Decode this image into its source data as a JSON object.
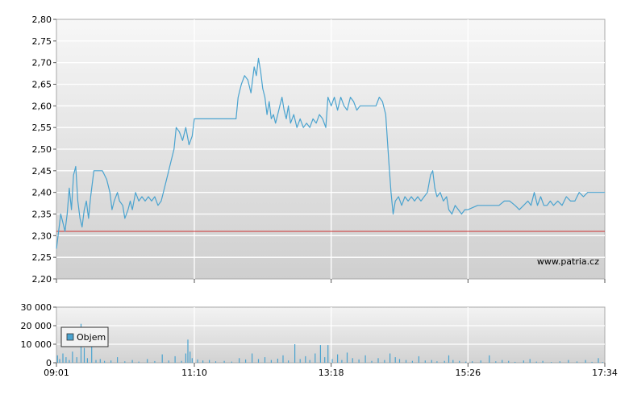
{
  "chart_data": [
    {
      "type": "line",
      "x_unit": "time",
      "ylim": [
        2.2,
        2.8
      ],
      "y_ticks": [
        "2,20",
        "2,25",
        "2,30",
        "2,35",
        "2,40",
        "2,45",
        "2,50",
        "2,55",
        "2,60",
        "2,65",
        "2,70",
        "2,75",
        "2,80"
      ],
      "grid": true,
      "reference_line": {
        "value": 2.31,
        "color": "#cc3333"
      },
      "watermark": "www.patria.cz",
      "series": [
        {
          "color": "#4aa3cf",
          "points": [
            [
              "09:01",
              2.27
            ],
            [
              "09:03",
              2.31
            ],
            [
              "09:05",
              2.35
            ],
            [
              "09:07",
              2.33
            ],
            [
              "09:09",
              2.31
            ],
            [
              "09:11",
              2.35
            ],
            [
              "09:13",
              2.41
            ],
            [
              "09:15",
              2.36
            ],
            [
              "09:17",
              2.44
            ],
            [
              "09:19",
              2.46
            ],
            [
              "09:21",
              2.38
            ],
            [
              "09:23",
              2.34
            ],
            [
              "09:25",
              2.32
            ],
            [
              "09:27",
              2.36
            ],
            [
              "09:29",
              2.38
            ],
            [
              "09:31",
              2.34
            ],
            [
              "09:33",
              2.39
            ],
            [
              "09:36",
              2.45
            ],
            [
              "09:40",
              2.45
            ],
            [
              "09:44",
              2.45
            ],
            [
              "09:48",
              2.43
            ],
            [
              "09:51",
              2.4
            ],
            [
              "09:53",
              2.36
            ],
            [
              "09:55",
              2.38
            ],
            [
              "09:58",
              2.4
            ],
            [
              "10:00",
              2.38
            ],
            [
              "10:03",
              2.37
            ],
            [
              "10:05",
              2.34
            ],
            [
              "10:08",
              2.36
            ],
            [
              "10:10",
              2.38
            ],
            [
              "10:12",
              2.36
            ],
            [
              "10:15",
              2.4
            ],
            [
              "10:18",
              2.38
            ],
            [
              "10:21",
              2.39
            ],
            [
              "10:24",
              2.38
            ],
            [
              "10:27",
              2.39
            ],
            [
              "10:30",
              2.38
            ],
            [
              "10:33",
              2.39
            ],
            [
              "10:36",
              2.37
            ],
            [
              "10:39",
              2.38
            ],
            [
              "10:42",
              2.41
            ],
            [
              "10:45",
              2.44
            ],
            [
              "10:48",
              2.47
            ],
            [
              "10:51",
              2.5
            ],
            [
              "10:53",
              2.55
            ],
            [
              "10:56",
              2.54
            ],
            [
              "10:59",
              2.52
            ],
            [
              "11:02",
              2.55
            ],
            [
              "11:05",
              2.51
            ],
            [
              "11:08",
              2.53
            ],
            [
              "11:10",
              2.57
            ],
            [
              "11:20",
              2.57
            ],
            [
              "11:30",
              2.57
            ],
            [
              "11:40",
              2.57
            ],
            [
              "11:49",
              2.57
            ],
            [
              "11:51",
              2.62
            ],
            [
              "11:54",
              2.65
            ],
            [
              "11:57",
              2.67
            ],
            [
              "12:00",
              2.66
            ],
            [
              "12:03",
              2.63
            ],
            [
              "12:06",
              2.69
            ],
            [
              "12:08",
              2.67
            ],
            [
              "12:10",
              2.71
            ],
            [
              "12:12",
              2.68
            ],
            [
              "12:14",
              2.64
            ],
            [
              "12:16",
              2.62
            ],
            [
              "12:18",
              2.58
            ],
            [
              "12:20",
              2.61
            ],
            [
              "12:22",
              2.57
            ],
            [
              "12:24",
              2.58
            ],
            [
              "12:26",
              2.56
            ],
            [
              "12:28",
              2.58
            ],
            [
              "12:30",
              2.6
            ],
            [
              "12:32",
              2.62
            ],
            [
              "12:34",
              2.59
            ],
            [
              "12:36",
              2.57
            ],
            [
              "12:38",
              2.6
            ],
            [
              "12:40",
              2.56
            ],
            [
              "12:43",
              2.58
            ],
            [
              "12:46",
              2.55
            ],
            [
              "12:49",
              2.57
            ],
            [
              "12:52",
              2.55
            ],
            [
              "12:55",
              2.56
            ],
            [
              "12:58",
              2.55
            ],
            [
              "13:01",
              2.57
            ],
            [
              "13:04",
              2.56
            ],
            [
              "13:07",
              2.58
            ],
            [
              "13:10",
              2.57
            ],
            [
              "13:13",
              2.55
            ],
            [
              "13:15",
              2.62
            ],
            [
              "13:18",
              2.6
            ],
            [
              "13:21",
              2.62
            ],
            [
              "13:24",
              2.59
            ],
            [
              "13:27",
              2.62
            ],
            [
              "13:30",
              2.6
            ],
            [
              "13:33",
              2.59
            ],
            [
              "13:36",
              2.62
            ],
            [
              "13:39",
              2.61
            ],
            [
              "13:42",
              2.59
            ],
            [
              "13:45",
              2.6
            ],
            [
              "13:50",
              2.6
            ],
            [
              "13:55",
              2.6
            ],
            [
              "14:00",
              2.6
            ],
            [
              "14:03",
              2.62
            ],
            [
              "14:06",
              2.61
            ],
            [
              "14:09",
              2.58
            ],
            [
              "14:12",
              2.47
            ],
            [
              "14:14",
              2.4
            ],
            [
              "14:16",
              2.35
            ],
            [
              "14:18",
              2.38
            ],
            [
              "14:21",
              2.39
            ],
            [
              "14:24",
              2.37
            ],
            [
              "14:27",
              2.39
            ],
            [
              "14:30",
              2.38
            ],
            [
              "14:33",
              2.39
            ],
            [
              "14:36",
              2.38
            ],
            [
              "14:39",
              2.39
            ],
            [
              "14:42",
              2.38
            ],
            [
              "14:45",
              2.39
            ],
            [
              "14:48",
              2.4
            ],
            [
              "14:51",
              2.44
            ],
            [
              "14:53",
              2.45
            ],
            [
              "14:55",
              2.41
            ],
            [
              "14:57",
              2.39
            ],
            [
              "15:00",
              2.4
            ],
            [
              "15:03",
              2.38
            ],
            [
              "15:06",
              2.39
            ],
            [
              "15:08",
              2.36
            ],
            [
              "15:11",
              2.35
            ],
            [
              "15:14",
              2.37
            ],
            [
              "15:17",
              2.36
            ],
            [
              "15:20",
              2.35
            ],
            [
              "15:23",
              2.36
            ],
            [
              "15:26",
              2.36
            ],
            [
              "15:35",
              2.37
            ],
            [
              "15:45",
              2.37
            ],
            [
              "15:55",
              2.37
            ],
            [
              "16:00",
              2.38
            ],
            [
              "16:05",
              2.38
            ],
            [
              "16:10",
              2.37
            ],
            [
              "16:14",
              2.36
            ],
            [
              "16:18",
              2.37
            ],
            [
              "16:22",
              2.38
            ],
            [
              "16:25",
              2.37
            ],
            [
              "16:28",
              2.4
            ],
            [
              "16:31",
              2.37
            ],
            [
              "16:34",
              2.39
            ],
            [
              "16:37",
              2.37
            ],
            [
              "16:40",
              2.37
            ],
            [
              "16:43",
              2.38
            ],
            [
              "16:46",
              2.37
            ],
            [
              "16:50",
              2.38
            ],
            [
              "16:54",
              2.37
            ],
            [
              "16:58",
              2.39
            ],
            [
              "17:02",
              2.38
            ],
            [
              "17:06",
              2.38
            ],
            [
              "17:10",
              2.4
            ],
            [
              "17:14",
              2.39
            ],
            [
              "17:18",
              2.4
            ],
            [
              "17:22",
              2.4
            ],
            [
              "17:26",
              2.4
            ],
            [
              "17:30",
              2.4
            ],
            [
              "17:34",
              2.4
            ]
          ]
        }
      ]
    },
    {
      "type": "bar",
      "x_unit": "time",
      "ylim": [
        0,
        30000
      ],
      "y_ticks": [
        "0",
        "10 000",
        "20 000",
        "30 000"
      ],
      "x_ticks": [
        "09:01",
        "11:10",
        "13:18",
        "15:26",
        "17:34"
      ],
      "grid": true,
      "legend": {
        "position": "top-left",
        "entries": [
          "Objem"
        ]
      },
      "series": [
        {
          "name": "Objem",
          "color": "#4aa3cf",
          "points": [
            [
              "09:02",
              4000
            ],
            [
              "09:04",
              2000
            ],
            [
              "09:07",
              5000
            ],
            [
              "09:10",
              3000
            ],
            [
              "09:13",
              1500
            ],
            [
              "09:16",
              6000
            ],
            [
              "09:20",
              3000
            ],
            [
              "09:24",
              21000
            ],
            [
              "09:27",
              8000
            ],
            [
              "09:30",
              2500
            ],
            [
              "09:34",
              9000
            ],
            [
              "09:38",
              1500
            ],
            [
              "09:42",
              2000
            ],
            [
              "09:46",
              1000
            ],
            [
              "09:52",
              1200
            ],
            [
              "09:58",
              3000
            ],
            [
              "10:05",
              800
            ],
            [
              "10:12",
              1500
            ],
            [
              "10:18",
              600
            ],
            [
              "10:26",
              2000
            ],
            [
              "10:33",
              900
            ],
            [
              "10:40",
              4500
            ],
            [
              "10:46",
              1200
            ],
            [
              "10:52",
              3500
            ],
            [
              "10:58",
              1000
            ],
            [
              "11:02",
              5000
            ],
            [
              "11:04",
              12500
            ],
            [
              "11:06",
              6000
            ],
            [
              "11:08",
              2500
            ],
            [
              "11:13",
              1800
            ],
            [
              "11:18",
              1200
            ],
            [
              "11:24",
              1500
            ],
            [
              "11:30",
              800
            ],
            [
              "11:38",
              1000
            ],
            [
              "11:45",
              600
            ],
            [
              "11:52",
              2500
            ],
            [
              "11:58",
              1800
            ],
            [
              "12:04",
              5000
            ],
            [
              "12:10",
              2000
            ],
            [
              "12:16",
              3000
            ],
            [
              "12:22",
              1500
            ],
            [
              "12:28",
              2200
            ],
            [
              "12:33",
              4000
            ],
            [
              "12:38",
              1200
            ],
            [
              "12:44",
              10000
            ],
            [
              "12:49",
              2000
            ],
            [
              "12:54",
              3500
            ],
            [
              "12:58",
              1500
            ],
            [
              "13:03",
              5000
            ],
            [
              "13:08",
              9500
            ],
            [
              "13:12",
              3000
            ],
            [
              "13:15",
              9500
            ],
            [
              "13:19",
              2000
            ],
            [
              "13:24",
              4500
            ],
            [
              "13:28",
              1500
            ],
            [
              "13:33",
              5500
            ],
            [
              "13:38",
              2500
            ],
            [
              "13:44",
              1800
            ],
            [
              "13:50",
              4000
            ],
            [
              "13:56",
              1000
            ],
            [
              "14:02",
              2500
            ],
            [
              "14:08",
              1500
            ],
            [
              "14:13",
              5000
            ],
            [
              "14:18",
              3000
            ],
            [
              "14:22",
              2000
            ],
            [
              "14:28",
              1500
            ],
            [
              "14:34",
              1000
            ],
            [
              "14:40",
              3500
            ],
            [
              "14:46",
              1200
            ],
            [
              "14:52",
              1500
            ],
            [
              "14:57",
              800
            ],
            [
              "15:04",
              1000
            ],
            [
              "15:08",
              4000
            ],
            [
              "15:12",
              1500
            ],
            [
              "15:18",
              1000
            ],
            [
              "15:24",
              600
            ],
            [
              "15:30",
              800
            ],
            [
              "15:38",
              1200
            ],
            [
              "15:46",
              4000
            ],
            [
              "15:52",
              800
            ],
            [
              "15:58",
              1500
            ],
            [
              "16:04",
              1000
            ],
            [
              "16:10",
              500
            ],
            [
              "16:18",
              1200
            ],
            [
              "16:24",
              2000
            ],
            [
              "16:30",
              600
            ],
            [
              "16:36",
              1000
            ],
            [
              "16:44",
              400
            ],
            [
              "16:52",
              800
            ],
            [
              "17:00",
              1500
            ],
            [
              "17:08",
              700
            ],
            [
              "17:16",
              1500
            ],
            [
              "17:22",
              500
            ],
            [
              "17:28",
              2500
            ],
            [
              "17:32",
              400
            ]
          ]
        }
      ]
    }
  ]
}
